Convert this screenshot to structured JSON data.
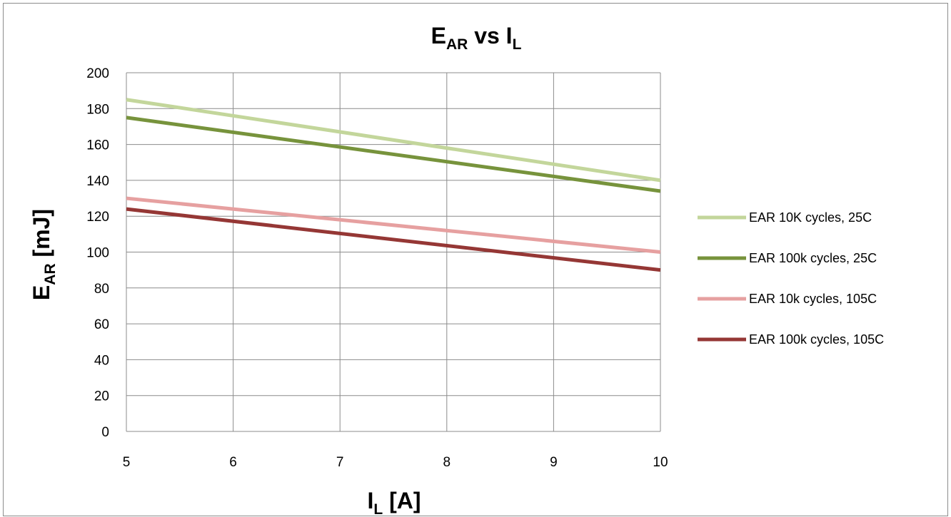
{
  "chart_data": {
    "type": "line",
    "title": {
      "main": "E",
      "sub": "AR",
      "mid": " vs I",
      "sub2": "L"
    },
    "xlabel": {
      "main": "I",
      "sub": "L",
      "rest": " [A]"
    },
    "ylabel": {
      "main": "E",
      "sub": "AR",
      "rest": " [mJ]"
    },
    "xlim": [
      5,
      10
    ],
    "ylim": [
      0,
      200
    ],
    "x_ticks": [
      "5",
      "6",
      "7",
      "8",
      "9",
      "10"
    ],
    "y_ticks": [
      "0",
      "20",
      "40",
      "60",
      "80",
      "100",
      "120",
      "140",
      "160",
      "180",
      "200"
    ],
    "grid": true,
    "legend_position": "right",
    "x": [
      5,
      10
    ],
    "series": [
      {
        "name": "EAR 10K cycles, 25C",
        "color": "#c3d69b",
        "values": [
          185,
          140
        ]
      },
      {
        "name": "EAR 100k cycles, 25C",
        "color": "#77933c",
        "values": [
          175,
          134
        ]
      },
      {
        "name": "EAR 10k cycles, 105C",
        "color": "#e6a0a0",
        "values": [
          130,
          100
        ]
      },
      {
        "name": "EAR 100k cycles, 105C",
        "color": "#953735",
        "values": [
          124,
          90
        ]
      }
    ]
  }
}
